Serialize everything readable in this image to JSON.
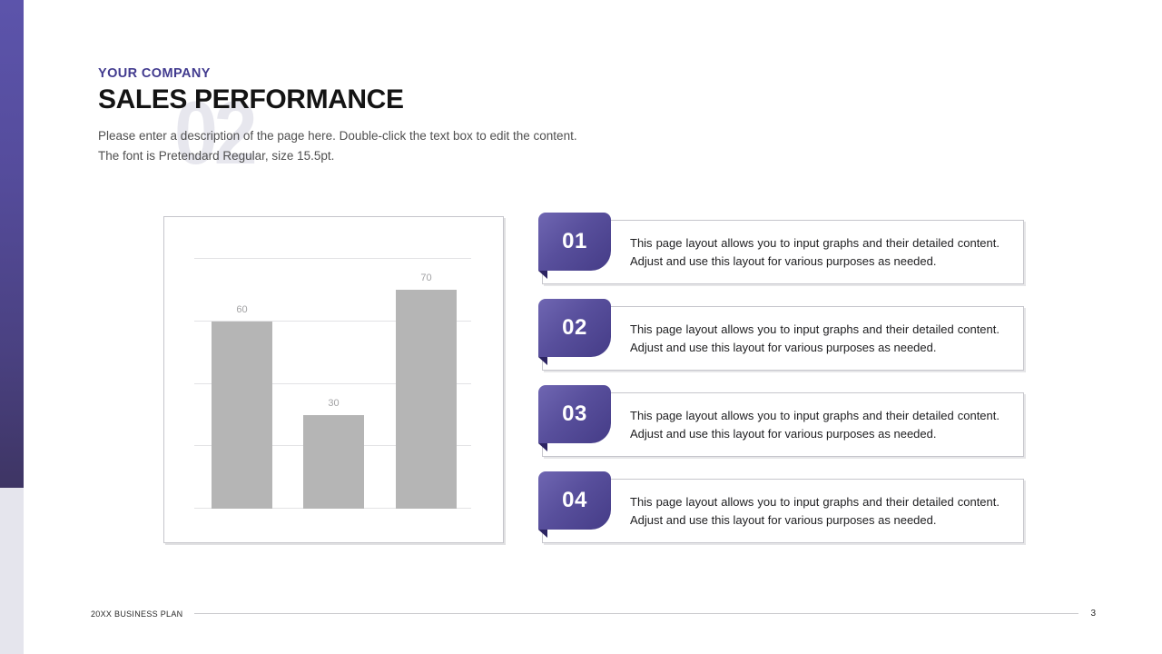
{
  "slide": {
    "section_number": "02",
    "eyebrow": "YOUR COMPANY",
    "title": "SALES PERFORMANCE",
    "description_line1": "Please enter a description of the page here. Double-click the text box to edit the content.",
    "description_line2": "The font is Pretendard Regular, size 15.5pt."
  },
  "chart_data": {
    "type": "bar",
    "categories": [
      "",
      "",
      ""
    ],
    "values": [
      60,
      30,
      70
    ],
    "data_labels": [
      "60",
      "30",
      "70"
    ],
    "title": "",
    "xlabel": "",
    "ylabel": "",
    "ylim": [
      0,
      80
    ],
    "gridline_step": 20,
    "grid": true,
    "legend": false,
    "bar_color": "#b5b5b5",
    "label_color": "#a2a2a4"
  },
  "cards": [
    {
      "number": "01",
      "text": "This page layout allows you to input graphs and their detailed content. Adjust and use this layout for various purposes as needed."
    },
    {
      "number": "02",
      "text": "This page layout allows you to input graphs and their detailed content. Adjust and use this layout for various purposes as needed."
    },
    {
      "number": "03",
      "text": "This page layout allows you to input graphs and their detailed content. Adjust and use this layout for various purposes as needed."
    },
    {
      "number": "04",
      "text": "This page layout allows you to input graphs and their detailed content. Adjust and use this layout for various purposes as needed."
    }
  ],
  "footer": {
    "label": "20XX BUSINESS PLAN",
    "page_number": "3"
  },
  "colors": {
    "accent_gradient_top": "#5c54ab",
    "accent_gradient_bottom": "#3e3564",
    "accent_light_section": "#e5e5ed",
    "eyebrow_text": "#423b8f",
    "badge_gradient_start": "#6f66b2",
    "badge_gradient_end": "#453c87",
    "badge_fold": "#2c2462",
    "watermark": "#e7e7ee",
    "card_border": "#c6c6cc",
    "bar_fill": "#b5b5b5"
  }
}
